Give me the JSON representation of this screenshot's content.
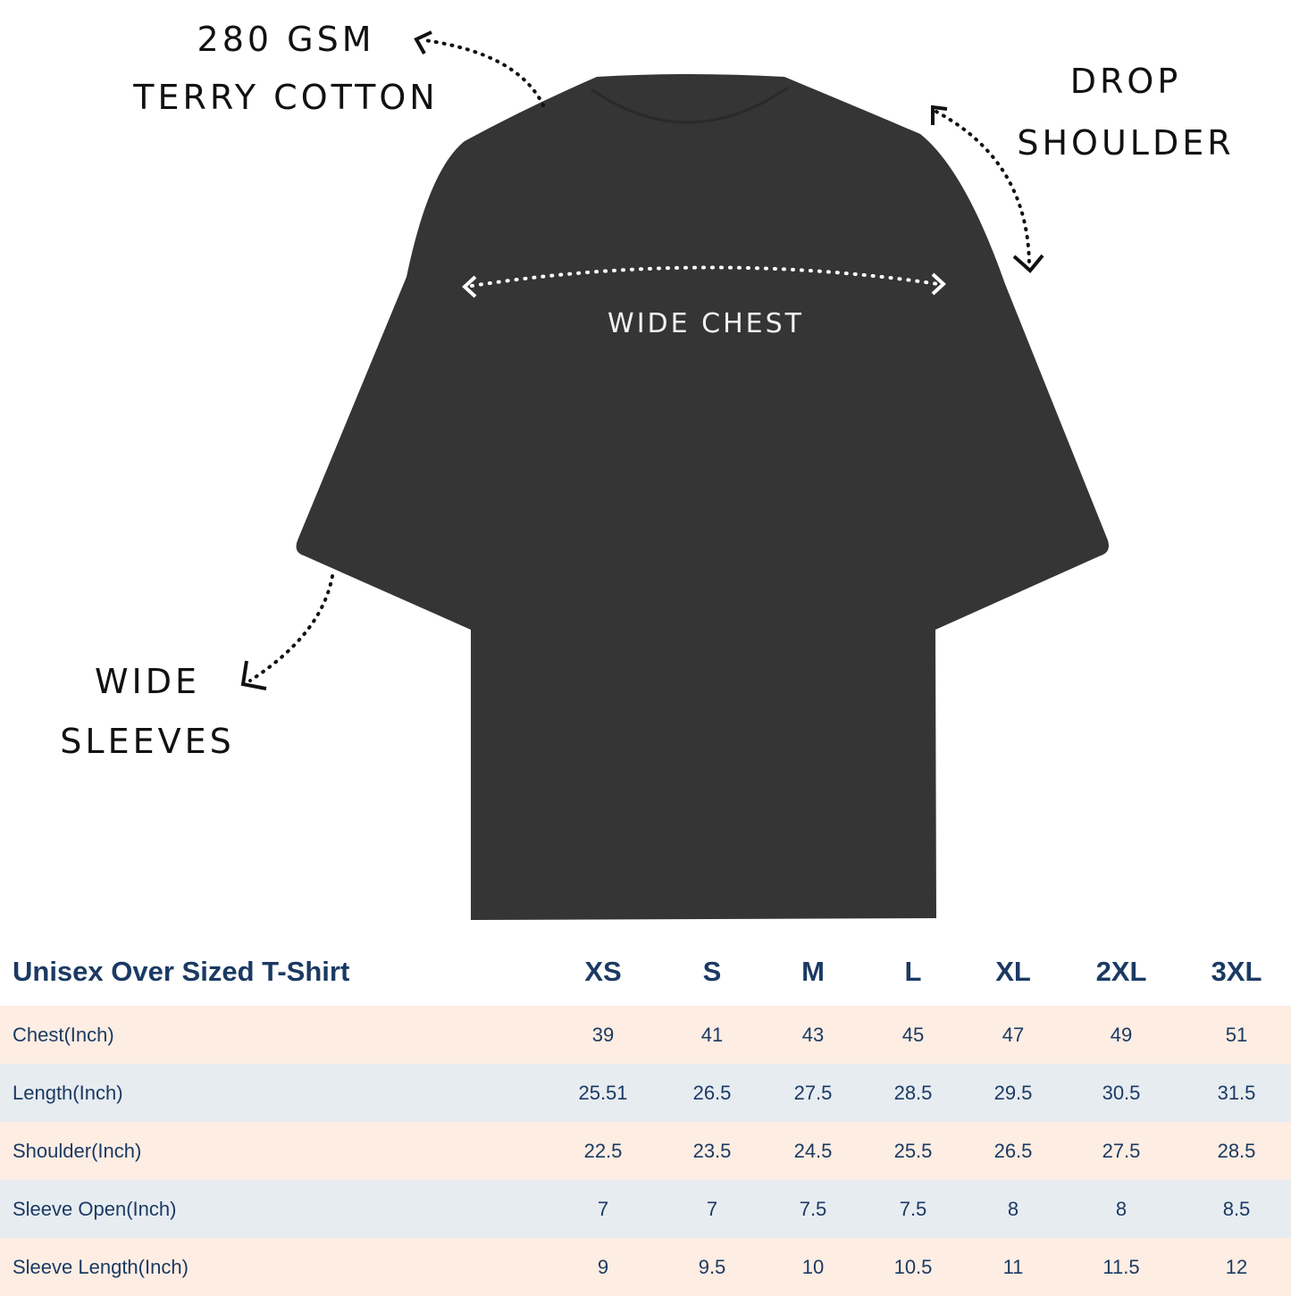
{
  "callouts": {
    "fabric_line1": "280 GSM",
    "fabric_line2": "TERRY COTTON",
    "shoulder_line1": "DROP",
    "shoulder_line2": "SHOULDER",
    "sleeves_line1": "WIDE",
    "sleeves_line2": "SLEEVES",
    "chest": "WIDE CHEST"
  },
  "colors": {
    "shirt": "#353535",
    "text": "#1b3a63",
    "row_a": "#fdede3",
    "row_b": "#e7ecf1"
  },
  "size_chart": {
    "title": "Unisex Over Sized T-Shirt",
    "sizes": [
      "XS",
      "S",
      "M",
      "L",
      "XL",
      "2XL",
      "3XL"
    ],
    "rows": [
      {
        "label": "Chest(Inch)",
        "values": [
          "39",
          "41",
          "43",
          "45",
          "47",
          "49",
          "51"
        ]
      },
      {
        "label": "Length(Inch)",
        "values": [
          "25.51",
          "26.5",
          "27.5",
          "28.5",
          "29.5",
          "30.5",
          "31.5"
        ]
      },
      {
        "label": "Shoulder(Inch)",
        "values": [
          "22.5",
          "23.5",
          "24.5",
          "25.5",
          "26.5",
          "27.5",
          "28.5"
        ]
      },
      {
        "label": "Sleeve Open(Inch)",
        "values": [
          "7",
          "7",
          "7.5",
          "7.5",
          "8",
          "8",
          "8.5"
        ]
      },
      {
        "label": "Sleeve Length(Inch)",
        "values": [
          "9",
          "9.5",
          "10",
          "10.5",
          "11",
          "11.5",
          "12"
        ]
      }
    ]
  }
}
